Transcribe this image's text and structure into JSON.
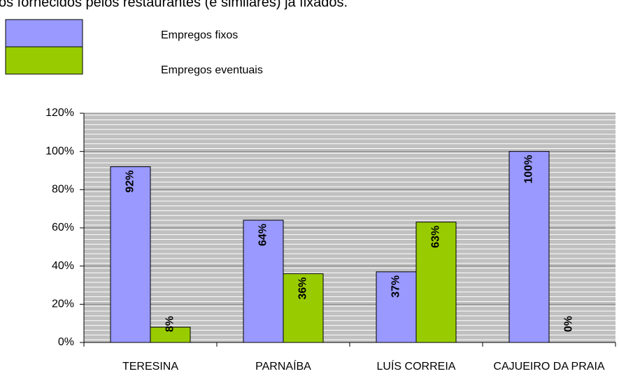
{
  "chart_data": {
    "type": "bar",
    "title": "os fornecidos pelos restaurantes (e similares) já fixados.",
    "categories": [
      "TERESINA",
      "PARNAÍBA",
      "LUÍS CORREIA",
      "CAJUEIRO DA PRAIA"
    ],
    "series": [
      {
        "name": "Empregos fixos",
        "color": "#9999ff",
        "values": [
          92,
          64,
          37,
          100
        ],
        "value_labels": [
          "92%",
          "64%",
          "37%",
          "100%"
        ]
      },
      {
        "name": "Empregos eventuais",
        "color": "#99cc00",
        "values": [
          8,
          36,
          63,
          0
        ],
        "value_labels": [
          "8%",
          "36%",
          "63%",
          "0%"
        ]
      }
    ],
    "ylim": [
      0,
      120
    ],
    "yticks": [
      {
        "value": 0,
        "label": "0%"
      },
      {
        "value": 20,
        "label": "20%"
      },
      {
        "value": 40,
        "label": "40%"
      },
      {
        "value": 60,
        "label": "60%"
      },
      {
        "value": 80,
        "label": "80%"
      },
      {
        "value": 100,
        "label": "100%"
      },
      {
        "value": 120,
        "label": "120%"
      }
    ],
    "grid": true
  }
}
